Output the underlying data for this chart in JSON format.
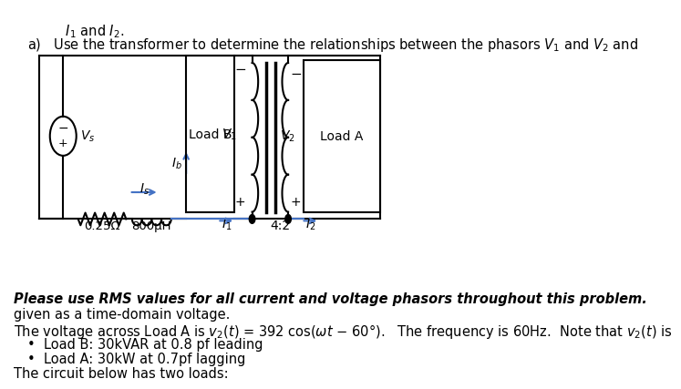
{
  "background_color": "#ffffff",
  "line1": "The circuit below has two loads:",
  "bullet1": "•  Load A: 30kW at 0.7pf lagging",
  "bullet2": "•  Load B: 30kVAR at 0.8 pf leading",
  "note1": "The voltage across Load A is $v_2(t)$ = 392 cos($\\omega t$ − 60°).   The frequency is 60Hz.  Note that $v_2(t)$ is",
  "note2": "given as a time-domain voltage.",
  "bold_line": "Please use RMS values for all current and voltage phasors throughout this problem.",
  "res_label": "0.25Ω",
  "ind_label": "800μH",
  "I1_label": "$I_1$",
  "I2_label": "$I_2$",
  "Is_label": "$I_s$",
  "Ib_label": "$I_b$",
  "Vs_label": "$V_s$",
  "V1_label": "$V_1$",
  "V2_label": "$V_2$",
  "ratio_label": "4:2",
  "LoadA_label": "Load A",
  "LoadB_label": "Load B",
  "q_line1": "a)   Use the transformer to determine the relationships between the phasors $V_1$ and $V_2$ and",
  "q_line2": "      $I_1$ and $I_2$.",
  "blue_color": "#4472c4",
  "black_color": "#000000"
}
